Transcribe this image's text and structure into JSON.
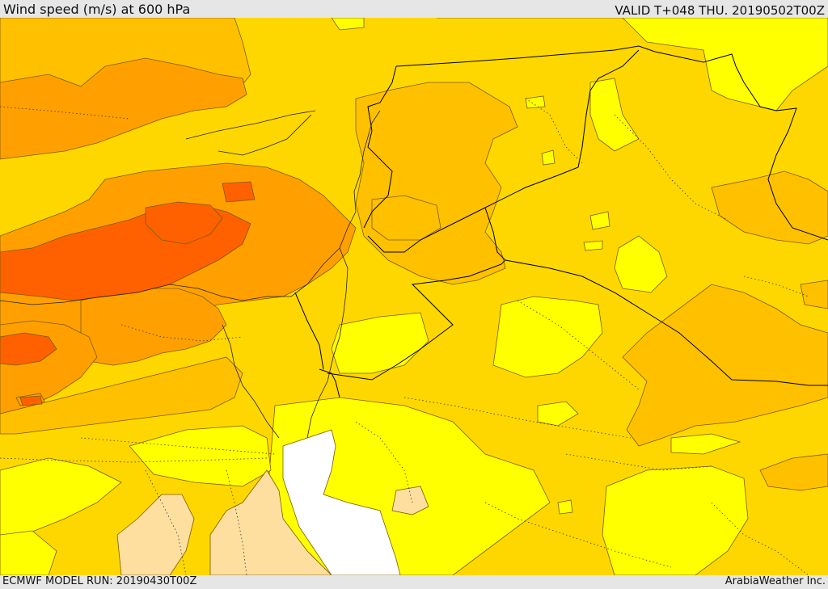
{
  "header": {
    "title": "Wind speed (m/s) at 600 hPa",
    "valid_time": "VALID T+048 THU. 20190502T00Z"
  },
  "footer": {
    "model_run": "ECMWF MODEL RUN: 20190430T00Z",
    "provider": "ArabiaWeather Inc."
  },
  "map": {
    "fill_colors": {
      "background": "#ffd700",
      "light_yellow": "#ffff00",
      "pale_orange": "#ffc000",
      "orange": "#ffa000",
      "dark_orange": "#ff6000",
      "tan": "#ffdfa0",
      "no_data": "#ffffff"
    }
  }
}
